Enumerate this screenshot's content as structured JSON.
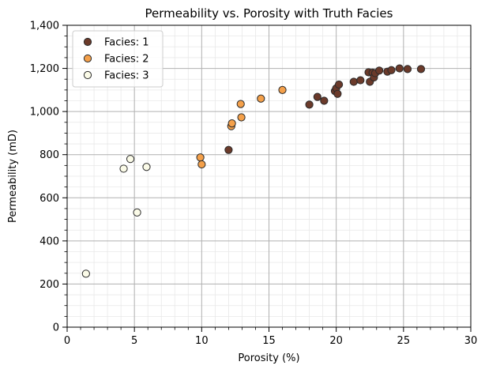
{
  "chart_data": {
    "type": "scatter",
    "title": "Permeability vs. Porosity with Truth Facies",
    "xlabel": "Porosity (%)",
    "ylabel": "Permeability (mD)",
    "xlim": [
      0,
      30
    ],
    "ylim": [
      0,
      1400
    ],
    "x_ticks": [
      0,
      5,
      10,
      15,
      20,
      25,
      30
    ],
    "y_ticks": [
      0,
      200,
      400,
      600,
      800,
      1000,
      1200,
      1400
    ],
    "x_tick_labels": [
      "0",
      "5",
      "10",
      "15",
      "20",
      "25",
      "30"
    ],
    "y_tick_labels": [
      "0",
      "200",
      "400",
      "600",
      "800",
      "1,000",
      "1,200",
      "1,400"
    ],
    "grid": {
      "major": true,
      "minor": true
    },
    "legend_position": "top-left",
    "series": [
      {
        "name": "Facies: 1",
        "color": "#6b3a2a",
        "points": [
          [
            12.0,
            822
          ],
          [
            18.0,
            1032
          ],
          [
            18.6,
            1068
          ],
          [
            19.1,
            1050
          ],
          [
            19.9,
            1095
          ],
          [
            20.0,
            1108
          ],
          [
            20.1,
            1082
          ],
          [
            20.2,
            1125
          ],
          [
            21.3,
            1138
          ],
          [
            21.8,
            1145
          ],
          [
            22.4,
            1182
          ],
          [
            22.5,
            1138
          ],
          [
            22.7,
            1180
          ],
          [
            22.8,
            1158
          ],
          [
            22.9,
            1178
          ],
          [
            23.2,
            1190
          ],
          [
            23.8,
            1185
          ],
          [
            24.1,
            1192
          ],
          [
            24.7,
            1200
          ],
          [
            25.3,
            1197
          ],
          [
            26.3,
            1197
          ]
        ]
      },
      {
        "name": "Facies: 2",
        "color": "#f4a04a",
        "points": [
          [
            9.9,
            787
          ],
          [
            10.0,
            755
          ],
          [
            12.2,
            932
          ],
          [
            12.25,
            945
          ],
          [
            12.9,
            1035
          ],
          [
            12.95,
            973
          ],
          [
            14.4,
            1060
          ],
          [
            16.0,
            1100
          ]
        ]
      },
      {
        "name": "Facies: 3",
        "color": "#fbfbe8",
        "points": [
          [
            1.4,
            248
          ],
          [
            4.2,
            735
          ],
          [
            4.7,
            780
          ],
          [
            5.2,
            532
          ],
          [
            5.9,
            743
          ]
        ]
      }
    ]
  }
}
